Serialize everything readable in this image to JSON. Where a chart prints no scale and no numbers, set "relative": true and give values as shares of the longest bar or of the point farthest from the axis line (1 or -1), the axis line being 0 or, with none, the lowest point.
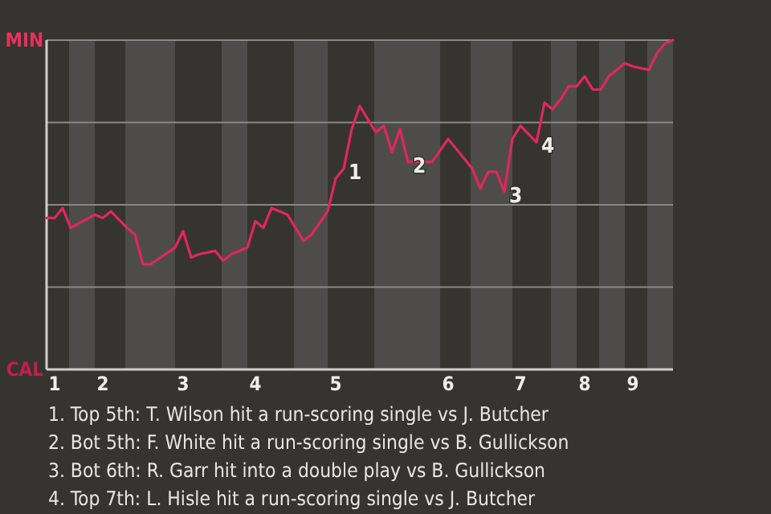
{
  "chart_data": {
    "type": "line",
    "relative": true,
    "categories": [
      null,
      "1",
      null,
      null,
      null,
      null,
      null,
      "2",
      null,
      null,
      null,
      null,
      null,
      null,
      null,
      null,
      null,
      "3",
      null,
      null,
      null,
      null,
      null,
      null,
      null,
      null,
      "4",
      null,
      null,
      null,
      null,
      null,
      null,
      null,
      null,
      null,
      "5",
      null,
      null,
      null,
      null,
      null,
      null,
      null,
      null,
      null,
      null,
      null,
      null,
      null,
      "6",
      null,
      null,
      null,
      null,
      null,
      null,
      null,
      null,
      "7",
      null,
      null,
      null,
      null,
      null,
      null,
      null,
      "8",
      null,
      null,
      null,
      null,
      null,
      "9",
      null,
      null,
      null,
      null,
      null
    ],
    "series": [
      {
        "color": "#e0285a",
        "values": [
          0.46,
          0.46,
          0.49,
          0.43,
          null,
          null,
          0.47,
          0.46,
          0.48,
          null,
          0.43,
          0.41,
          0.32,
          0.32,
          null,
          null,
          0.37,
          0.42,
          0.34,
          0.35,
          null,
          0.36,
          0.33,
          0.35,
          null,
          0.37,
          0.45,
          0.43,
          0.49,
          null,
          0.47,
          null,
          0.39,
          0.41,
          null,
          0.48,
          0.58,
          0.61,
          0.73,
          0.8,
          null,
          0.72,
          0.74,
          0.66,
          0.73,
          0.63,
          null,
          null,
          0.63,
          null,
          0.7,
          null,
          0.64,
          0.61,
          0.55,
          0.6,
          0.6,
          0.54,
          0.7,
          0.74,
          null,
          0.69,
          0.81,
          0.79,
          0.82,
          0.86,
          0.86,
          0.89,
          0.85,
          0.85,
          0.89,
          null,
          0.93,
          0.92,
          null,
          0.91,
          0.96,
          0.99,
          1.0
        ]
      }
    ],
    "grid": "y",
    "marker": "none",
    "line_style": "solid",
    "annotations": [
      "MIN",
      "CAL",
      "1",
      "2",
      "3",
      "4",
      "1. Top 5th: T. Wilson hit a run-scoring single vs J. Butcher",
      "2. Bot 5th: F. White hit a run-scoring single vs B. Gullickson",
      "3. Bot 6th: R. Garr hit into a double play vs B. Gullickson",
      "4. Top 7th: L. Hisle hit a run-scoring single vs J. Butcher"
    ]
  }
}
